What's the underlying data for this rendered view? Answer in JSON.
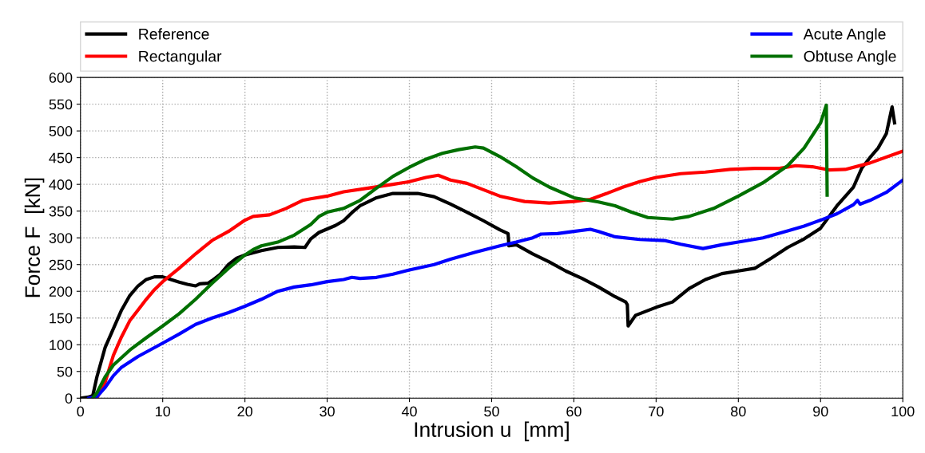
{
  "chart_data": {
    "type": "line",
    "xlabel": "Intrusion u  [mm]",
    "ylabel": "Force F  [kN]",
    "xlim": [
      0,
      100
    ],
    "xticks": [
      0,
      10,
      20,
      30,
      40,
      50,
      60,
      70,
      80,
      90,
      100
    ],
    "ylim": [
      0,
      600
    ],
    "yticks": [
      0,
      50,
      100,
      150,
      200,
      250,
      300,
      350,
      400,
      450,
      500,
      550,
      600
    ],
    "grid": true,
    "legend": "top",
    "line_style": "solid",
    "series": [
      {
        "name": "Reference",
        "color": "#000000",
        "x": [
          0,
          1,
          1.5,
          2,
          3,
          4,
          5,
          6,
          7,
          8,
          9,
          10,
          11,
          12,
          13,
          14,
          14.5,
          15.5,
          16,
          17,
          18,
          19,
          20,
          22,
          24,
          26,
          27.3,
          28,
          29,
          31,
          32,
          33,
          34,
          36,
          38,
          41,
          43,
          45,
          47,
          49,
          51,
          52,
          52.1,
          53,
          55,
          57,
          59,
          61,
          63,
          65,
          66.3,
          66.5,
          66.6,
          67.5,
          70,
          72,
          74,
          76,
          78,
          80,
          82,
          84,
          86,
          88,
          90,
          92,
          94,
          95,
          96,
          97,
          98,
          98.7,
          99
        ],
        "values": [
          0,
          2,
          5,
          40,
          95,
          130,
          165,
          192,
          210,
          222,
          227,
          227,
          222,
          217,
          213,
          210,
          214,
          215,
          220,
          232,
          250,
          262,
          268,
          276,
          282,
          283,
          282,
          298,
          310,
          323,
          332,
          347,
          360,
          375,
          383,
          383,
          377,
          363,
          348,
          332,
          315,
          308,
          285,
          287,
          270,
          255,
          238,
          224,
          208,
          190,
          180,
          175,
          135,
          155,
          170,
          180,
          205,
          222,
          233,
          238,
          243,
          262,
          282,
          298,
          318,
          360,
          395,
          430,
          450,
          468,
          495,
          545,
          515
        ]
      },
      {
        "name": "Rectangular",
        "color": "#ff0000",
        "x": [
          2,
          3,
          4,
          5,
          6,
          7,
          8,
          9,
          10,
          12,
          14,
          16,
          18,
          20,
          21,
          23,
          25,
          27,
          28,
          30,
          32,
          35,
          38,
          40,
          42,
          43.5,
          45,
          47,
          49,
          51,
          54,
          57,
          60,
          62,
          64,
          66,
          68,
          70,
          73,
          76,
          79,
          82,
          85,
          87,
          89,
          91,
          93,
          96,
          100
        ],
        "values": [
          0,
          30,
          80,
          115,
          145,
          165,
          185,
          203,
          218,
          243,
          270,
          295,
          312,
          333,
          340,
          343,
          355,
          370,
          373,
          378,
          386,
          393,
          400,
          405,
          413,
          417,
          408,
          402,
          390,
          378,
          368,
          365,
          368,
          372,
          383,
          395,
          405,
          413,
          420,
          423,
          428,
          430,
          430,
          435,
          433,
          427,
          428,
          440,
          462
        ]
      },
      {
        "name": "Acute Angle",
        "color": "#0000ff",
        "x": [
          1,
          2,
          3,
          4,
          5,
          7,
          10,
          12,
          14,
          16,
          18,
          20,
          22,
          24,
          26,
          28,
          30,
          32,
          33,
          34,
          36,
          38,
          40,
          43,
          45,
          48,
          51,
          53,
          55,
          56,
          58,
          60,
          62,
          63,
          65,
          68,
          71,
          73,
          75.7,
          78,
          80,
          83,
          86,
          88,
          90,
          92,
          94,
          94.5,
          94.8,
          96,
          98,
          100
        ],
        "values": [
          0,
          3,
          20,
          42,
          58,
          78,
          103,
          120,
          138,
          150,
          160,
          172,
          185,
          200,
          208,
          212,
          218,
          222,
          226,
          224,
          226,
          232,
          240,
          250,
          260,
          273,
          285,
          292,
          300,
          307,
          308,
          312,
          316,
          312,
          302,
          297,
          295,
          288,
          280,
          287,
          292,
          300,
          313,
          322,
          333,
          345,
          362,
          370,
          363,
          370,
          385,
          408
        ]
      },
      {
        "name": "Obtuse Angle",
        "color": "#007000",
        "x": [
          1.5,
          2,
          3,
          4,
          6,
          8,
          10,
          12,
          14,
          16,
          18,
          20,
          21,
          22,
          24,
          26,
          28,
          29,
          30,
          32,
          34,
          36,
          38,
          40,
          42,
          44,
          46,
          48,
          49,
          51,
          53,
          55,
          57,
          60,
          63,
          65,
          67,
          69,
          72,
          74,
          77,
          80,
          83,
          86,
          88,
          90,
          90.7,
          90.8
        ],
        "values": [
          0,
          10,
          40,
          62,
          90,
          113,
          135,
          158,
          185,
          215,
          243,
          268,
          278,
          285,
          292,
          305,
          325,
          340,
          348,
          355,
          370,
          393,
          415,
          432,
          447,
          458,
          465,
          470,
          468,
          452,
          433,
          412,
          395,
          375,
          367,
          360,
          348,
          338,
          335,
          340,
          355,
          378,
          403,
          435,
          468,
          515,
          548,
          380
        ]
      }
    ]
  }
}
